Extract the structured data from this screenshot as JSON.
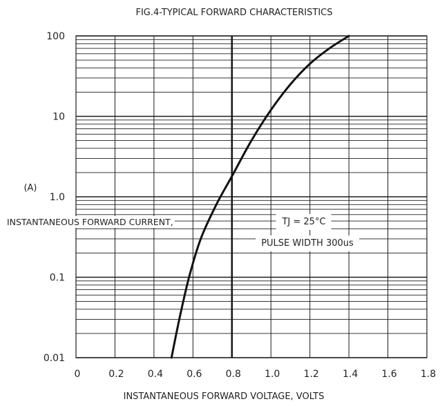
{
  "chart_data": {
    "type": "line",
    "title": "FIG.4-TYPICAL FORWARD CHARACTERISTICS",
    "xlabel": "INSTANTANEOUS FORWARD VOLTAGE, VOLTS",
    "ylabel": "INSTANTANEOUS FORWARD CURRENT,",
    "yunit": "(A)",
    "xlim": [
      0,
      1.8
    ],
    "ylim": [
      0.01,
      100
    ],
    "yscale": "log",
    "grid": true,
    "x_ticks": [
      "0",
      "0.2",
      "0.4",
      "0.6",
      "0.8",
      "1.0",
      "1.2",
      "1.4",
      "1.6",
      "1.8"
    ],
    "y_ticks": [
      "0.01",
      "0.1",
      "1.0",
      "10",
      "100"
    ],
    "series": [
      {
        "x": [
          0.49,
          0.53,
          0.58,
          0.64,
          0.72,
          0.8,
          0.9,
          1.0,
          1.1,
          1.2,
          1.3,
          1.4
        ],
        "y": [
          0.01,
          0.03,
          0.1,
          0.3,
          0.8,
          1.8,
          5,
          12,
          25,
          45,
          70,
          100
        ]
      }
    ],
    "annotations": [
      "TJ = 25°C",
      "PULSE WIDTH 300us"
    ]
  }
}
